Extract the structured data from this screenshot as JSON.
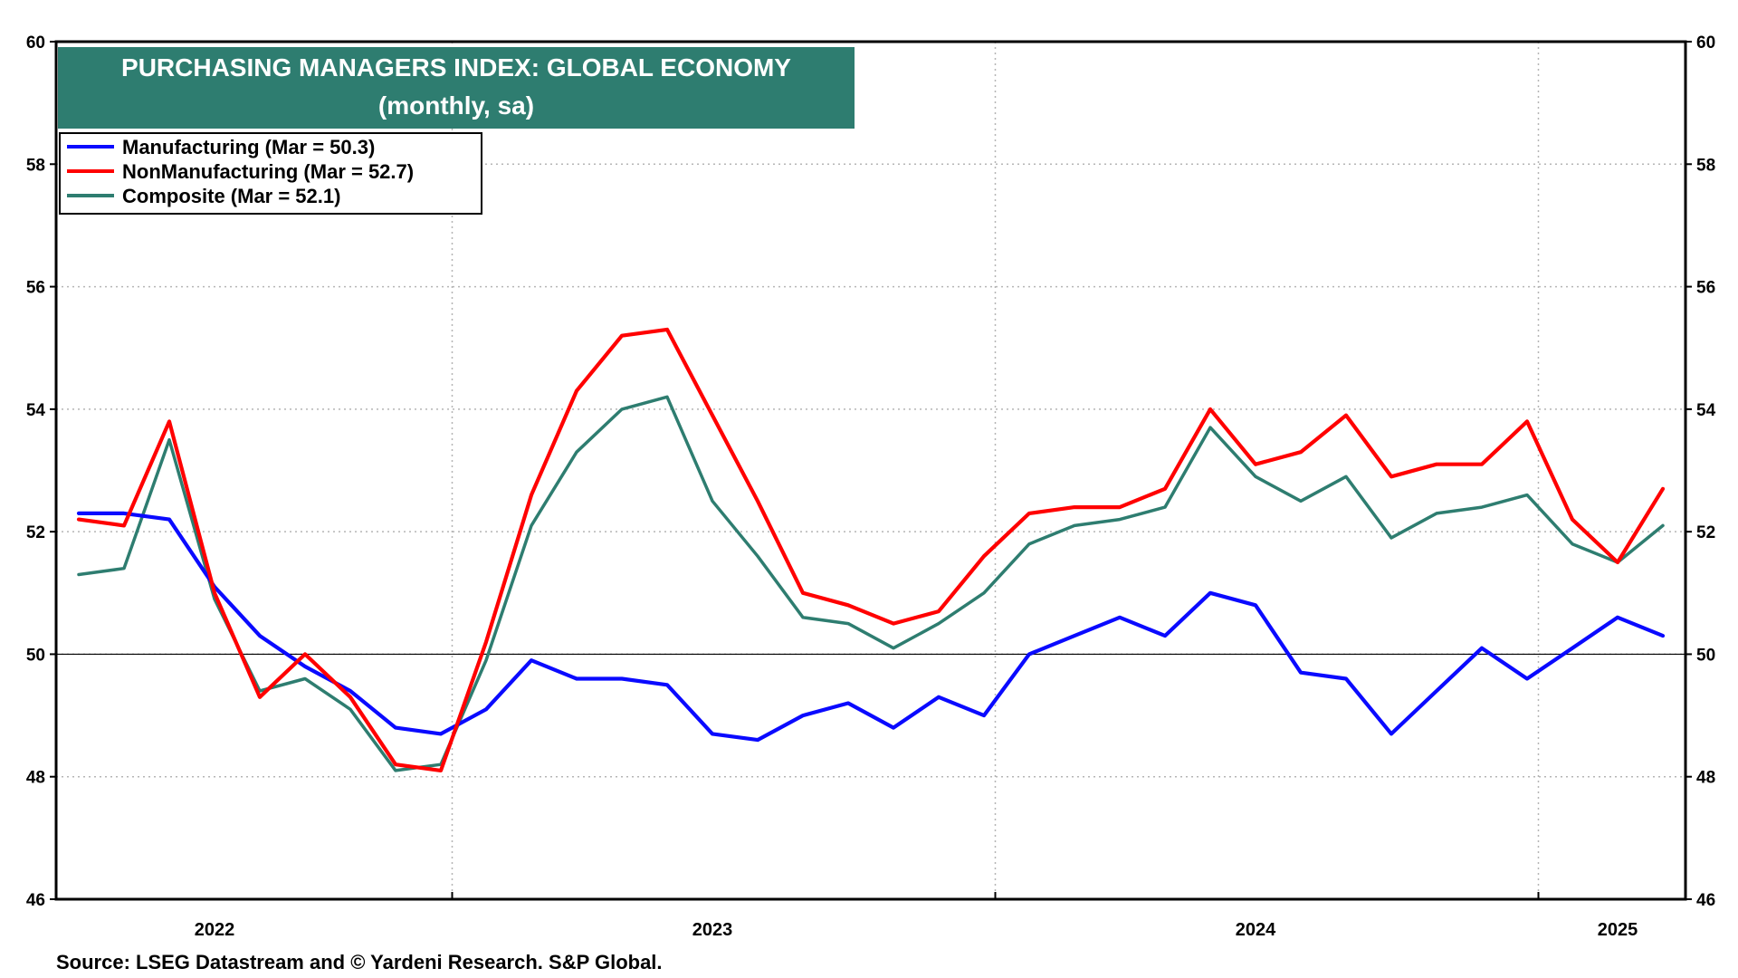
{
  "chart_data": {
    "type": "line",
    "title": "PURCHASING MANAGERS INDEX: GLOBAL ECONOMY",
    "subtitle": "(monthly, sa)",
    "source": "Source: LSEG Datastream and © Yardeni Research. S&P Global.",
    "ylim": [
      46,
      60
    ],
    "yticks": [
      46,
      48,
      50,
      52,
      54,
      56,
      58,
      60
    ],
    "reference_line": 50,
    "xlim": [
      0,
      36
    ],
    "year_boundaries": [
      8.75,
      20.75,
      32.75
    ],
    "year_labels": [
      {
        "label": "2022",
        "x": 3.5
      },
      {
        "label": "2023",
        "x": 14.5
      },
      {
        "label": "2024",
        "x": 26.5
      },
      {
        "label": "2025",
        "x": 34.5
      }
    ],
    "legend_position": "top-left",
    "grid": true,
    "series": [
      {
        "name": "Manufacturing",
        "legend": "Manufacturing (Mar = 50.3)",
        "color": "#0a0aff",
        "values": [
          52.3,
          52.3,
          52.2,
          51.1,
          50.3,
          49.8,
          49.4,
          48.8,
          48.7,
          49.1,
          49.9,
          49.6,
          49.6,
          49.5,
          48.7,
          48.6,
          49.0,
          49.2,
          48.8,
          49.3,
          49.0,
          50.0,
          50.3,
          50.6,
          50.3,
          51.0,
          50.8,
          49.7,
          49.6,
          48.7,
          49.4,
          50.1,
          49.6,
          50.1,
          50.6,
          50.3
        ]
      },
      {
        "name": "NonManufacturing",
        "legend": "NonManufacturing (Mar = 52.7)",
        "color": "#ff0000",
        "values": [
          52.2,
          52.1,
          53.8,
          51.0,
          49.3,
          50.0,
          49.3,
          48.2,
          48.1,
          50.2,
          52.6,
          54.3,
          55.2,
          55.3,
          53.9,
          52.5,
          51.0,
          50.8,
          50.5,
          50.7,
          51.6,
          52.3,
          52.4,
          52.4,
          52.7,
          54.0,
          53.1,
          53.3,
          53.9,
          52.9,
          53.1,
          53.1,
          53.8,
          52.2,
          51.5,
          52.7
        ]
      },
      {
        "name": "Composite",
        "legend": "Composite (Mar = 52.1)",
        "color": "#2e7d70",
        "values": [
          51.3,
          51.4,
          53.5,
          50.9,
          49.4,
          49.6,
          49.1,
          48.1,
          48.2,
          49.9,
          52.1,
          53.3,
          54.0,
          54.2,
          52.5,
          51.6,
          50.6,
          50.5,
          50.1,
          50.5,
          51.0,
          51.8,
          52.1,
          52.2,
          52.4,
          53.7,
          52.9,
          52.5,
          52.9,
          51.9,
          52.3,
          52.4,
          52.6,
          51.8,
          51.5,
          52.1
        ]
      }
    ]
  },
  "colors": {
    "title_box": "#2e7d70",
    "grid": "#b5b5b5",
    "axis": "#000000"
  }
}
